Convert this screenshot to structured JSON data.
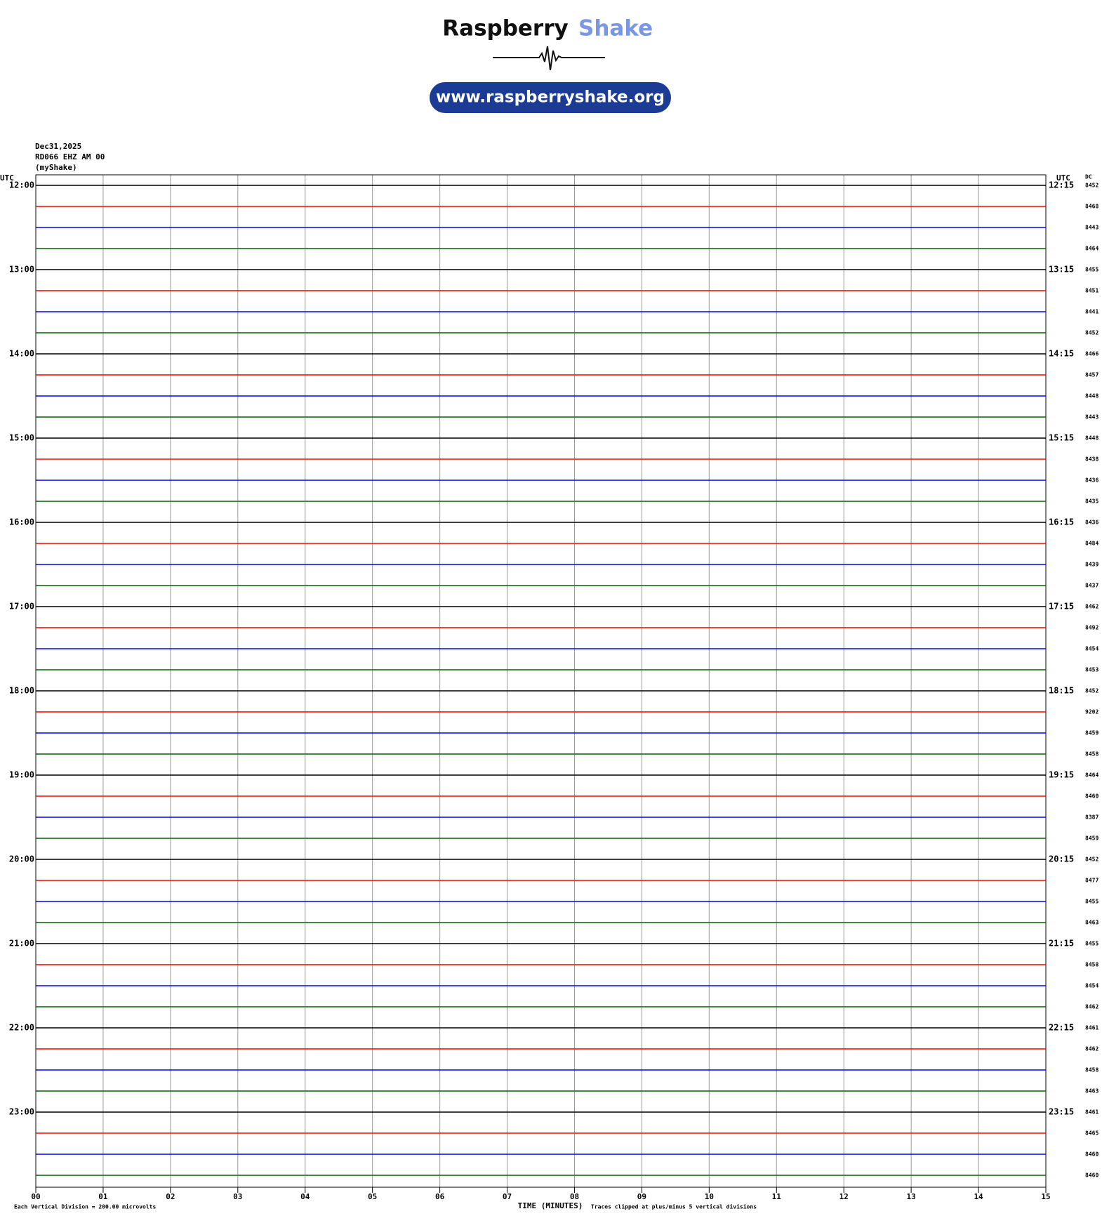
{
  "chart_data": {
    "type": "helicorder",
    "brand": {
      "word1": "Raspberry",
      "word2": "Shake",
      "url": "www.raspberryshake.org"
    },
    "date": "Dec31,2025",
    "station": "RD066 EHZ AM 00",
    "source": "(myShake)",
    "left_unit": "UTC",
    "right_unit": "UTC",
    "dc_header": "DC",
    "left_labels": [
      "12:00",
      "13:00",
      "14:00",
      "15:00",
      "16:00",
      "17:00",
      "18:00",
      "19:00",
      "20:00",
      "21:00",
      "22:00",
      "23:00"
    ],
    "right_labels": [
      "12:15",
      "13:15",
      "14:15",
      "15:15",
      "16:15",
      "17:15",
      "18:15",
      "19:15",
      "20:15",
      "21:15",
      "22:15",
      "23:15"
    ],
    "dc": [
      8452,
      8468,
      8443,
      8464,
      8455,
      8451,
      8441,
      8452,
      8466,
      8457,
      8448,
      8443,
      8448,
      8438,
      8436,
      8435,
      8436,
      8484,
      8439,
      8437,
      8462,
      8492,
      8454,
      8453,
      8452,
      9202,
      8459,
      8458,
      8464,
      8460,
      8387,
      8459,
      8452,
      8477,
      8455,
      8463,
      8455,
      8458,
      8454,
      8462,
      8461,
      8462,
      8458,
      8463,
      8461,
      8465,
      8460,
      8460
    ],
    "trace_colors": [
      "#000000",
      "#ff0000",
      "#0000ff",
      "#006400"
    ],
    "xlim": [
      0,
      15
    ],
    "xticks": [
      {
        "value": 0,
        "label": "00"
      },
      {
        "value": 1,
        "label": "01"
      },
      {
        "value": 2,
        "label": "02"
      },
      {
        "value": 3,
        "label": "03"
      },
      {
        "value": 4,
        "label": "04"
      },
      {
        "value": 5,
        "label": "05"
      },
      {
        "value": 6,
        "label": "06"
      },
      {
        "value": 7,
        "label": "07"
      },
      {
        "value": 8,
        "label": "08"
      },
      {
        "value": 9,
        "label": "09"
      },
      {
        "value": 10,
        "label": "10"
      },
      {
        "value": 11,
        "label": "11"
      },
      {
        "value": 12,
        "label": "12"
      },
      {
        "value": 13,
        "label": "13"
      },
      {
        "value": 14,
        "label": "14"
      },
      {
        "value": 15,
        "label": "15"
      }
    ],
    "xlabel": "TIME (MINUTES)",
    "scale_note": "Each Vertical Division =  200.00 microvolts",
    "clip_note": "Traces clipped at plus/minus 5 vertical divisions",
    "grid": true
  }
}
